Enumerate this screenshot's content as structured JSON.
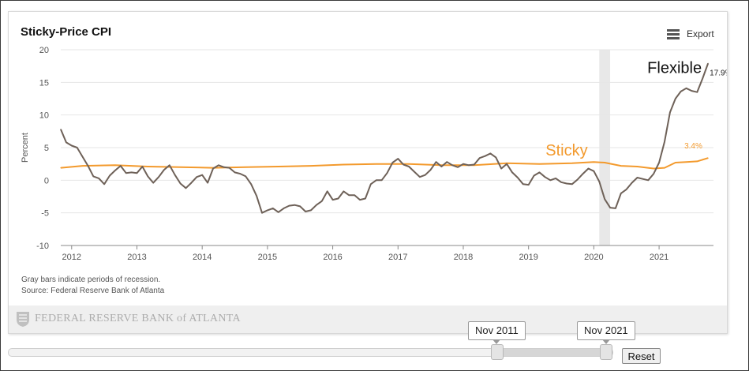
{
  "chart_data": {
    "type": "line",
    "title": "Sticky-Price CPI",
    "ylabel": "Percent",
    "xlabel": "",
    "ylim": [
      -10,
      20
    ],
    "yticks": [
      20,
      15,
      10,
      5,
      0,
      -5,
      -10
    ],
    "xticks": [
      "2012",
      "2013",
      "2014",
      "2015",
      "2016",
      "2017",
      "2018",
      "2019",
      "2020",
      "2021"
    ],
    "x_range": [
      "2011-11",
      "2021-11"
    ],
    "grid": true,
    "legend": "none",
    "recession_bands": [
      {
        "start": "2020-02",
        "end": "2020-04"
      }
    ],
    "series": [
      {
        "name": "Flexible",
        "color": "#6e6158",
        "end_label": "17.9%",
        "points": [
          [
            "2011-11",
            7.8
          ],
          [
            "2011-12",
            5.8
          ],
          [
            "2012-01",
            5.3
          ],
          [
            "2012-02",
            5.0
          ],
          [
            "2012-03",
            3.6
          ],
          [
            "2012-04",
            2.2
          ],
          [
            "2012-05",
            0.6
          ],
          [
            "2012-06",
            0.3
          ],
          [
            "2012-07",
            -0.6
          ],
          [
            "2012-08",
            0.7
          ],
          [
            "2012-09",
            1.5
          ],
          [
            "2012-10",
            2.2
          ],
          [
            "2012-11",
            1.1
          ],
          [
            "2012-12",
            1.2
          ],
          [
            "2013-01",
            1.1
          ],
          [
            "2013-02",
            2.1
          ],
          [
            "2013-03",
            0.6
          ],
          [
            "2013-04",
            -0.4
          ],
          [
            "2013-05",
            0.5
          ],
          [
            "2013-06",
            1.6
          ],
          [
            "2013-07",
            2.3
          ],
          [
            "2013-08",
            0.8
          ],
          [
            "2013-09",
            -0.5
          ],
          [
            "2013-10",
            -1.2
          ],
          [
            "2013-11",
            -0.4
          ],
          [
            "2013-12",
            0.5
          ],
          [
            "2014-01",
            0.8
          ],
          [
            "2014-02",
            -0.4
          ],
          [
            "2014-03",
            1.8
          ],
          [
            "2014-04",
            2.3
          ],
          [
            "2014-05",
            2.0
          ],
          [
            "2014-06",
            1.9
          ],
          [
            "2014-07",
            1.2
          ],
          [
            "2014-08",
            1.0
          ],
          [
            "2014-09",
            0.6
          ],
          [
            "2014-10",
            -0.6
          ],
          [
            "2014-11",
            -2.4
          ],
          [
            "2014-12",
            -5.0
          ],
          [
            "2015-01",
            -4.6
          ],
          [
            "2015-02",
            -4.3
          ],
          [
            "2015-03",
            -4.9
          ],
          [
            "2015-04",
            -4.3
          ],
          [
            "2015-05",
            -3.9
          ],
          [
            "2015-06",
            -3.8
          ],
          [
            "2015-07",
            -4.0
          ],
          [
            "2015-08",
            -4.8
          ],
          [
            "2015-09",
            -4.6
          ],
          [
            "2015-10",
            -3.8
          ],
          [
            "2015-11",
            -3.2
          ],
          [
            "2015-12",
            -1.7
          ],
          [
            "2016-01",
            -3.0
          ],
          [
            "2016-02",
            -2.8
          ],
          [
            "2016-03",
            -1.7
          ],
          [
            "2016-04",
            -2.3
          ],
          [
            "2016-05",
            -2.3
          ],
          [
            "2016-06",
            -3.0
          ],
          [
            "2016-07",
            -2.8
          ],
          [
            "2016-08",
            -0.6
          ],
          [
            "2016-09",
            0.0
          ],
          [
            "2016-10",
            0.0
          ],
          [
            "2016-11",
            1.1
          ],
          [
            "2016-12",
            2.7
          ],
          [
            "2017-01",
            3.3
          ],
          [
            "2017-02",
            2.4
          ],
          [
            "2017-03",
            2.1
          ],
          [
            "2017-04",
            1.3
          ],
          [
            "2017-05",
            0.5
          ],
          [
            "2017-06",
            0.8
          ],
          [
            "2017-07",
            1.6
          ],
          [
            "2017-08",
            2.8
          ],
          [
            "2017-09",
            2.1
          ],
          [
            "2017-10",
            2.8
          ],
          [
            "2017-11",
            2.3
          ],
          [
            "2017-12",
            2.0
          ],
          [
            "2018-01",
            2.5
          ],
          [
            "2018-02",
            2.3
          ],
          [
            "2018-03",
            2.4
          ],
          [
            "2018-04",
            3.4
          ],
          [
            "2018-05",
            3.7
          ],
          [
            "2018-06",
            4.1
          ],
          [
            "2018-07",
            3.5
          ],
          [
            "2018-08",
            1.8
          ],
          [
            "2018-09",
            2.5
          ],
          [
            "2018-10",
            1.2
          ],
          [
            "2018-11",
            0.4
          ],
          [
            "2018-12",
            -0.6
          ],
          [
            "2019-01",
            -0.7
          ],
          [
            "2019-02",
            0.7
          ],
          [
            "2019-03",
            1.2
          ],
          [
            "2019-04",
            0.5
          ],
          [
            "2019-05",
            0.0
          ],
          [
            "2019-06",
            0.3
          ],
          [
            "2019-07",
            -0.3
          ],
          [
            "2019-08",
            -0.5
          ],
          [
            "2019-09",
            -0.6
          ],
          [
            "2019-10",
            0.1
          ],
          [
            "2019-11",
            1.0
          ],
          [
            "2019-12",
            1.8
          ],
          [
            "2020-01",
            1.4
          ],
          [
            "2020-02",
            -0.2
          ],
          [
            "2020-03",
            -2.9
          ],
          [
            "2020-04",
            -4.2
          ],
          [
            "2020-05",
            -4.3
          ],
          [
            "2020-06",
            -2.0
          ],
          [
            "2020-07",
            -1.4
          ],
          [
            "2020-08",
            -0.4
          ],
          [
            "2020-09",
            0.4
          ],
          [
            "2020-10",
            0.2
          ],
          [
            "2020-11",
            0.0
          ],
          [
            "2020-12",
            1.0
          ],
          [
            "2021-01",
            2.7
          ],
          [
            "2021-02",
            5.9
          ],
          [
            "2021-03",
            10.4
          ],
          [
            "2021-04",
            12.5
          ],
          [
            "2021-05",
            13.6
          ],
          [
            "2021-06",
            14.1
          ],
          [
            "2021-07",
            13.7
          ],
          [
            "2021-08",
            13.5
          ],
          [
            "2021-09",
            15.6
          ],
          [
            "2021-10",
            17.9
          ]
        ]
      },
      {
        "name": "Sticky",
        "color": "#f39a2d",
        "end_label": "3.4%",
        "points": [
          [
            "2011-11",
            1.9
          ],
          [
            "2012-03",
            2.2
          ],
          [
            "2012-09",
            2.3
          ],
          [
            "2013-03",
            2.1
          ],
          [
            "2013-09",
            2.0
          ],
          [
            "2014-03",
            1.9
          ],
          [
            "2014-09",
            2.0
          ],
          [
            "2015-03",
            2.1
          ],
          [
            "2015-09",
            2.2
          ],
          [
            "2016-03",
            2.4
          ],
          [
            "2016-09",
            2.5
          ],
          [
            "2017-03",
            2.5
          ],
          [
            "2017-09",
            2.3
          ],
          [
            "2018-03",
            2.3
          ],
          [
            "2018-09",
            2.6
          ],
          [
            "2019-03",
            2.5
          ],
          [
            "2019-09",
            2.6
          ],
          [
            "2020-01",
            2.8
          ],
          [
            "2020-03",
            2.7
          ],
          [
            "2020-06",
            2.2
          ],
          [
            "2020-09",
            2.1
          ],
          [
            "2020-12",
            1.8
          ],
          [
            "2021-02",
            1.9
          ],
          [
            "2021-04",
            2.7
          ],
          [
            "2021-06",
            2.8
          ],
          [
            "2021-08",
            2.9
          ],
          [
            "2021-10",
            3.4
          ]
        ]
      }
    ],
    "annotations": [
      {
        "text": "Flexible",
        "series": "Flexible"
      },
      {
        "text": "Sticky",
        "series": "Sticky"
      }
    ]
  },
  "header": {
    "export_label": "Export"
  },
  "footnotes": {
    "recession_note": "Gray bars indicate periods of recession.",
    "source": "Source: Federal Reserve Bank of Atlanta"
  },
  "credit": {
    "logo_text": "FEDERAL RESERVE BANK of ATLANTA"
  },
  "navigator": {
    "start_label": "Nov 2011",
    "end_label": "Nov 2021",
    "reset_label": "Reset"
  },
  "colors": {
    "flexible": "#6e6158",
    "sticky": "#f39a2d",
    "recession": "#e8e8e8",
    "axis_text": "#555555",
    "grid": "#e6e6e6"
  }
}
